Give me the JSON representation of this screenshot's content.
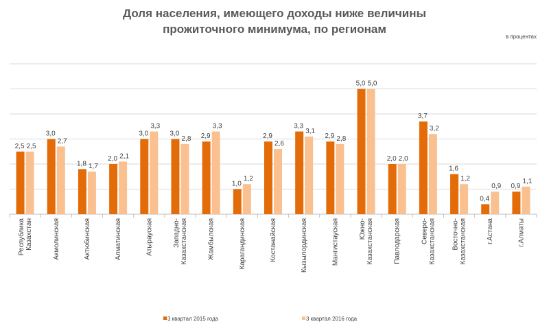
{
  "chart_data": {
    "type": "bar",
    "title_line1": "Доля населения, имеющего доходы ниже величины",
    "title_line2": "прожиточного минимума, по регионам",
    "units": "в процентах",
    "categories": [
      [
        "Республика",
        "Казахстан"
      ],
      [
        "Акмолинская"
      ],
      [
        "Актюбинская"
      ],
      [
        "Алматинская"
      ],
      [
        "Атырауская"
      ],
      [
        "Западно-",
        "Казахстанская"
      ],
      [
        "Жамбылская"
      ],
      [
        "Карагандинская"
      ],
      [
        "Костанайская"
      ],
      [
        "Кызылординская"
      ],
      [
        "Мангистауская"
      ],
      [
        "Южно-",
        "Казахстанская"
      ],
      [
        "Павлодарская"
      ],
      [
        "Северо-",
        "Казахстанская"
      ],
      [
        "Восточно-",
        "Казахстанская"
      ],
      [
        "г.Астана"
      ],
      [
        "г.Алматы"
      ]
    ],
    "series": [
      {
        "name": "3 квартал 2015 года",
        "color": "#e36c09",
        "values": [
          2.5,
          3.0,
          1.8,
          2.0,
          3.0,
          3.0,
          2.9,
          1.0,
          2.9,
          3.3,
          2.9,
          5.0,
          2.0,
          3.7,
          1.6,
          0.4,
          0.9
        ],
        "labels": [
          "2,5",
          "3,0",
          "1,8",
          "2,0",
          "3,0",
          "3,0",
          "2,9",
          "1,0",
          "2,9",
          "3,3",
          "2,9",
          "5,0",
          "2,0",
          "3,7",
          "1,6",
          "0,4",
          "0,9"
        ]
      },
      {
        "name": "3 квартал 2016 года",
        "color": "#fac090",
        "values": [
          2.5,
          2.7,
          1.7,
          2.1,
          3.3,
          2.8,
          3.3,
          1.2,
          2.6,
          3.1,
          2.8,
          5.0,
          2.0,
          3.2,
          1.2,
          0.9,
          1.1
        ],
        "labels": [
          "2,5",
          "2,7",
          "1,7",
          "2,1",
          "3,3",
          "2,8",
          "3,3",
          "1,2",
          "2,6",
          "3,1",
          "2,8",
          "5,0",
          "2,0",
          "3,2",
          "1,2",
          "0,9",
          "1,1"
        ]
      }
    ],
    "ylim": [
      0,
      6
    ],
    "gridlines": [
      1,
      2,
      3,
      4,
      5,
      6
    ],
    "legend_position": "bottom"
  }
}
